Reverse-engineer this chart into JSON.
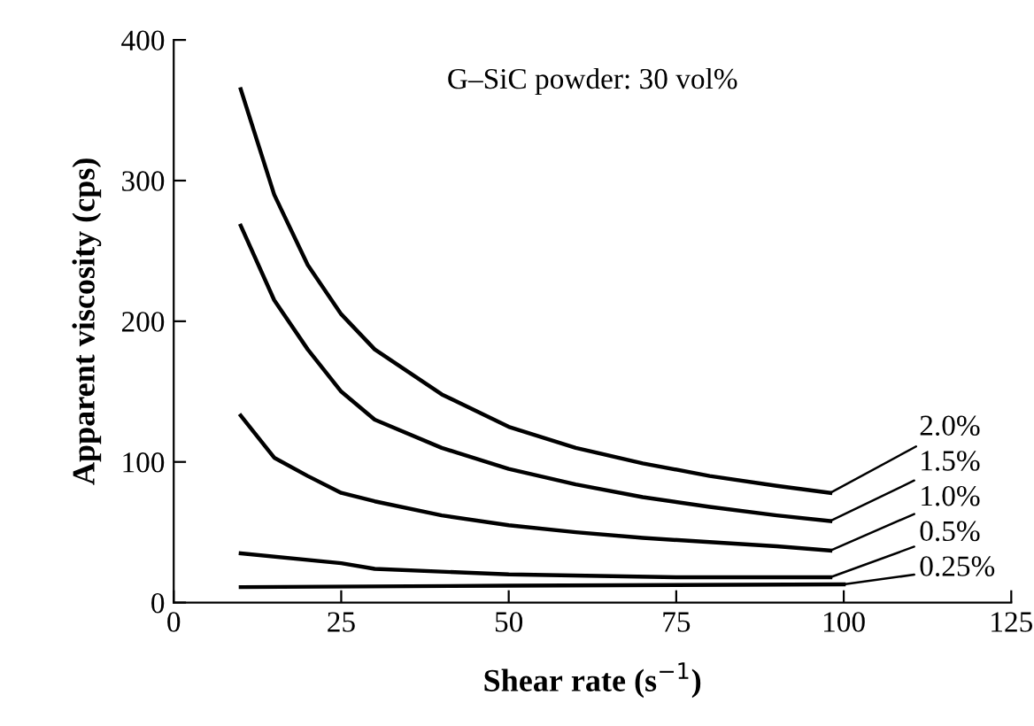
{
  "chart_data": {
    "type": "line",
    "title": "G–SiC powder: 30 vol%",
    "xlabel": "Shear rate (s$^{−1}$)",
    "ylabel": "Apparent viscosity (cps)",
    "xlim": [
      0,
      125
    ],
    "xticks": [
      0,
      25,
      50,
      75,
      100,
      125
    ],
    "ylim": [
      0,
      400
    ],
    "yticks": [
      0,
      100,
      200,
      300,
      400
    ],
    "grid": false,
    "legend": "bottom right",
    "marker": "none",
    "line_style": "solid",
    "series": [
      {
        "name": "2.0%",
        "color": "#000000",
        "x": [
          10,
          15,
          20,
          25,
          30,
          40,
          50,
          60,
          70,
          80,
          90,
          98
        ],
        "values": [
          365,
          290,
          240,
          205,
          180,
          148,
          125,
          110,
          99,
          90,
          83,
          78
        ]
      },
      {
        "name": "1.5%",
        "color": "#000000",
        "x": [
          10,
          15,
          20,
          25,
          30,
          40,
          50,
          60,
          70,
          80,
          90,
          98
        ],
        "values": [
          268,
          215,
          180,
          150,
          130,
          110,
          95,
          84,
          75,
          68,
          62,
          58
        ]
      },
      {
        "name": "1.0%",
        "color": "#000000",
        "x": [
          10,
          15,
          20,
          25,
          30,
          40,
          50,
          60,
          70,
          80,
          90,
          98
        ],
        "values": [
          133,
          103,
          90,
          78,
          72,
          62,
          55,
          50,
          46,
          43,
          40,
          37
        ]
      },
      {
        "name": "0.5%",
        "color": "#000000",
        "x": [
          10,
          25,
          30,
          50,
          75,
          98
        ],
        "values": [
          35,
          28,
          24,
          20,
          18,
          18
        ]
      },
      {
        "name": "0.25%",
        "color": "#000000",
        "x": [
          10,
          50,
          100
        ],
        "values": [
          11,
          12,
          13
        ]
      }
    ]
  }
}
